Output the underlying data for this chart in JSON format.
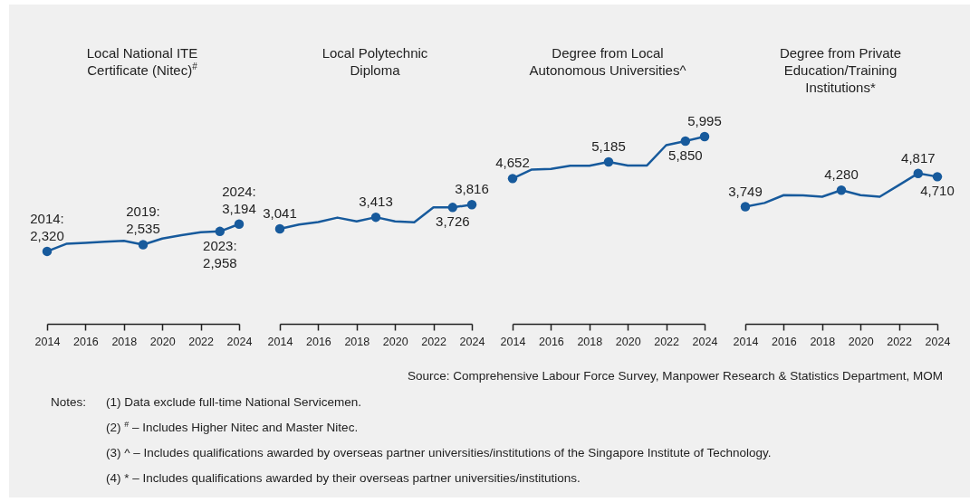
{
  "chart_data": [
    {
      "type": "line",
      "title": "Local National ITE Certificate (Nitec)$^{#}$",
      "x": [
        2014,
        2015,
        2016,
        2017,
        2018,
        2019,
        2020,
        2021,
        2022,
        2023,
        2024
      ],
      "xlim": [
        2014,
        2024
      ],
      "xticks": [
        2014,
        2016,
        2018,
        2020,
        2022,
        2024
      ],
      "tick_labels": "x",
      "grid": false,
      "series": [
        {
          "color": "#175a9c",
          "values": [
            2320,
            2560,
            2590,
            2630,
            2660,
            2535,
            2730,
            2840,
            2930,
            2958,
            3194
          ],
          "value_labels": [
            "2014: 2,320",
            null,
            null,
            null,
            null,
            "2019: 2,535",
            null,
            null,
            null,
            "2023: 2,958",
            "2024: 3,194"
          ]
        }
      ]
    },
    {
      "type": "line",
      "title": "Local Polytechnic Diploma",
      "x": [
        2014,
        2015,
        2016,
        2017,
        2018,
        2019,
        2020,
        2021,
        2022,
        2023,
        2024
      ],
      "xlim": [
        2014,
        2024
      ],
      "xticks": [
        2014,
        2016,
        2018,
        2020,
        2022,
        2024
      ],
      "tick_labels": "x",
      "grid": false,
      "series": [
        {
          "color": "#175a9c",
          "values": [
            3041,
            3180,
            3260,
            3400,
            3280,
            3413,
            3280,
            3250,
            3730,
            3726,
            3816
          ],
          "value_labels": [
            "3,041",
            null,
            null,
            null,
            null,
            "3,413",
            null,
            null,
            null,
            "3,726",
            "3,816"
          ]
        }
      ]
    },
    {
      "type": "line",
      "title": "Degree from Local Autonomous Universities^",
      "x": [
        2014,
        2015,
        2016,
        2017,
        2018,
        2019,
        2020,
        2021,
        2022,
        2023,
        2024
      ],
      "xlim": [
        2014,
        2024
      ],
      "xticks": [
        2014,
        2016,
        2018,
        2020,
        2022,
        2024
      ],
      "tick_labels": "x",
      "grid": false,
      "series": [
        {
          "color": "#175a9c",
          "values": [
            4652,
            4940,
            4960,
            5060,
            5060,
            5185,
            5070,
            5070,
            5720,
            5850,
            5995
          ],
          "value_labels": [
            "4,652",
            null,
            null,
            null,
            null,
            "5,185",
            null,
            null,
            null,
            "5,850",
            "5,995"
          ]
        }
      ]
    },
    {
      "type": "line",
      "title": "Degree from Private Education/Training Institutions*",
      "x": [
        2014,
        2015,
        2016,
        2017,
        2018,
        2019,
        2020,
        2021,
        2022,
        2023,
        2024
      ],
      "xlim": [
        2014,
        2024
      ],
      "xticks": [
        2014,
        2016,
        2018,
        2020,
        2022,
        2024
      ],
      "tick_labels": "x",
      "grid": false,
      "series": [
        {
          "color": "#175a9c",
          "values": [
            3749,
            3870,
            4120,
            4110,
            4070,
            4280,
            4120,
            4070,
            4440,
            4817,
            4710
          ],
          "value_labels": [
            "3,749",
            null,
            null,
            null,
            null,
            "4,280",
            null,
            null,
            null,
            "4,817",
            "4,710"
          ]
        }
      ],
      "annotations": [
        "Source: Comprehensive Labour Force Survey, Manpower Research & Statistics Department, MOM",
        "Notes:",
        "(1) Data exclude full-time National Servicemen.",
        "(2) $^{#}$ – Includes Higher Nitec and Master Nitec.",
        "(3) ^ – Includes qualifications awarded by overseas partner universities/institutions of the Singapore Institute of Technology.",
        "(4)  * – Includes qualifications awarded by their overseas partner universities/institutions."
      ]
    }
  ]
}
